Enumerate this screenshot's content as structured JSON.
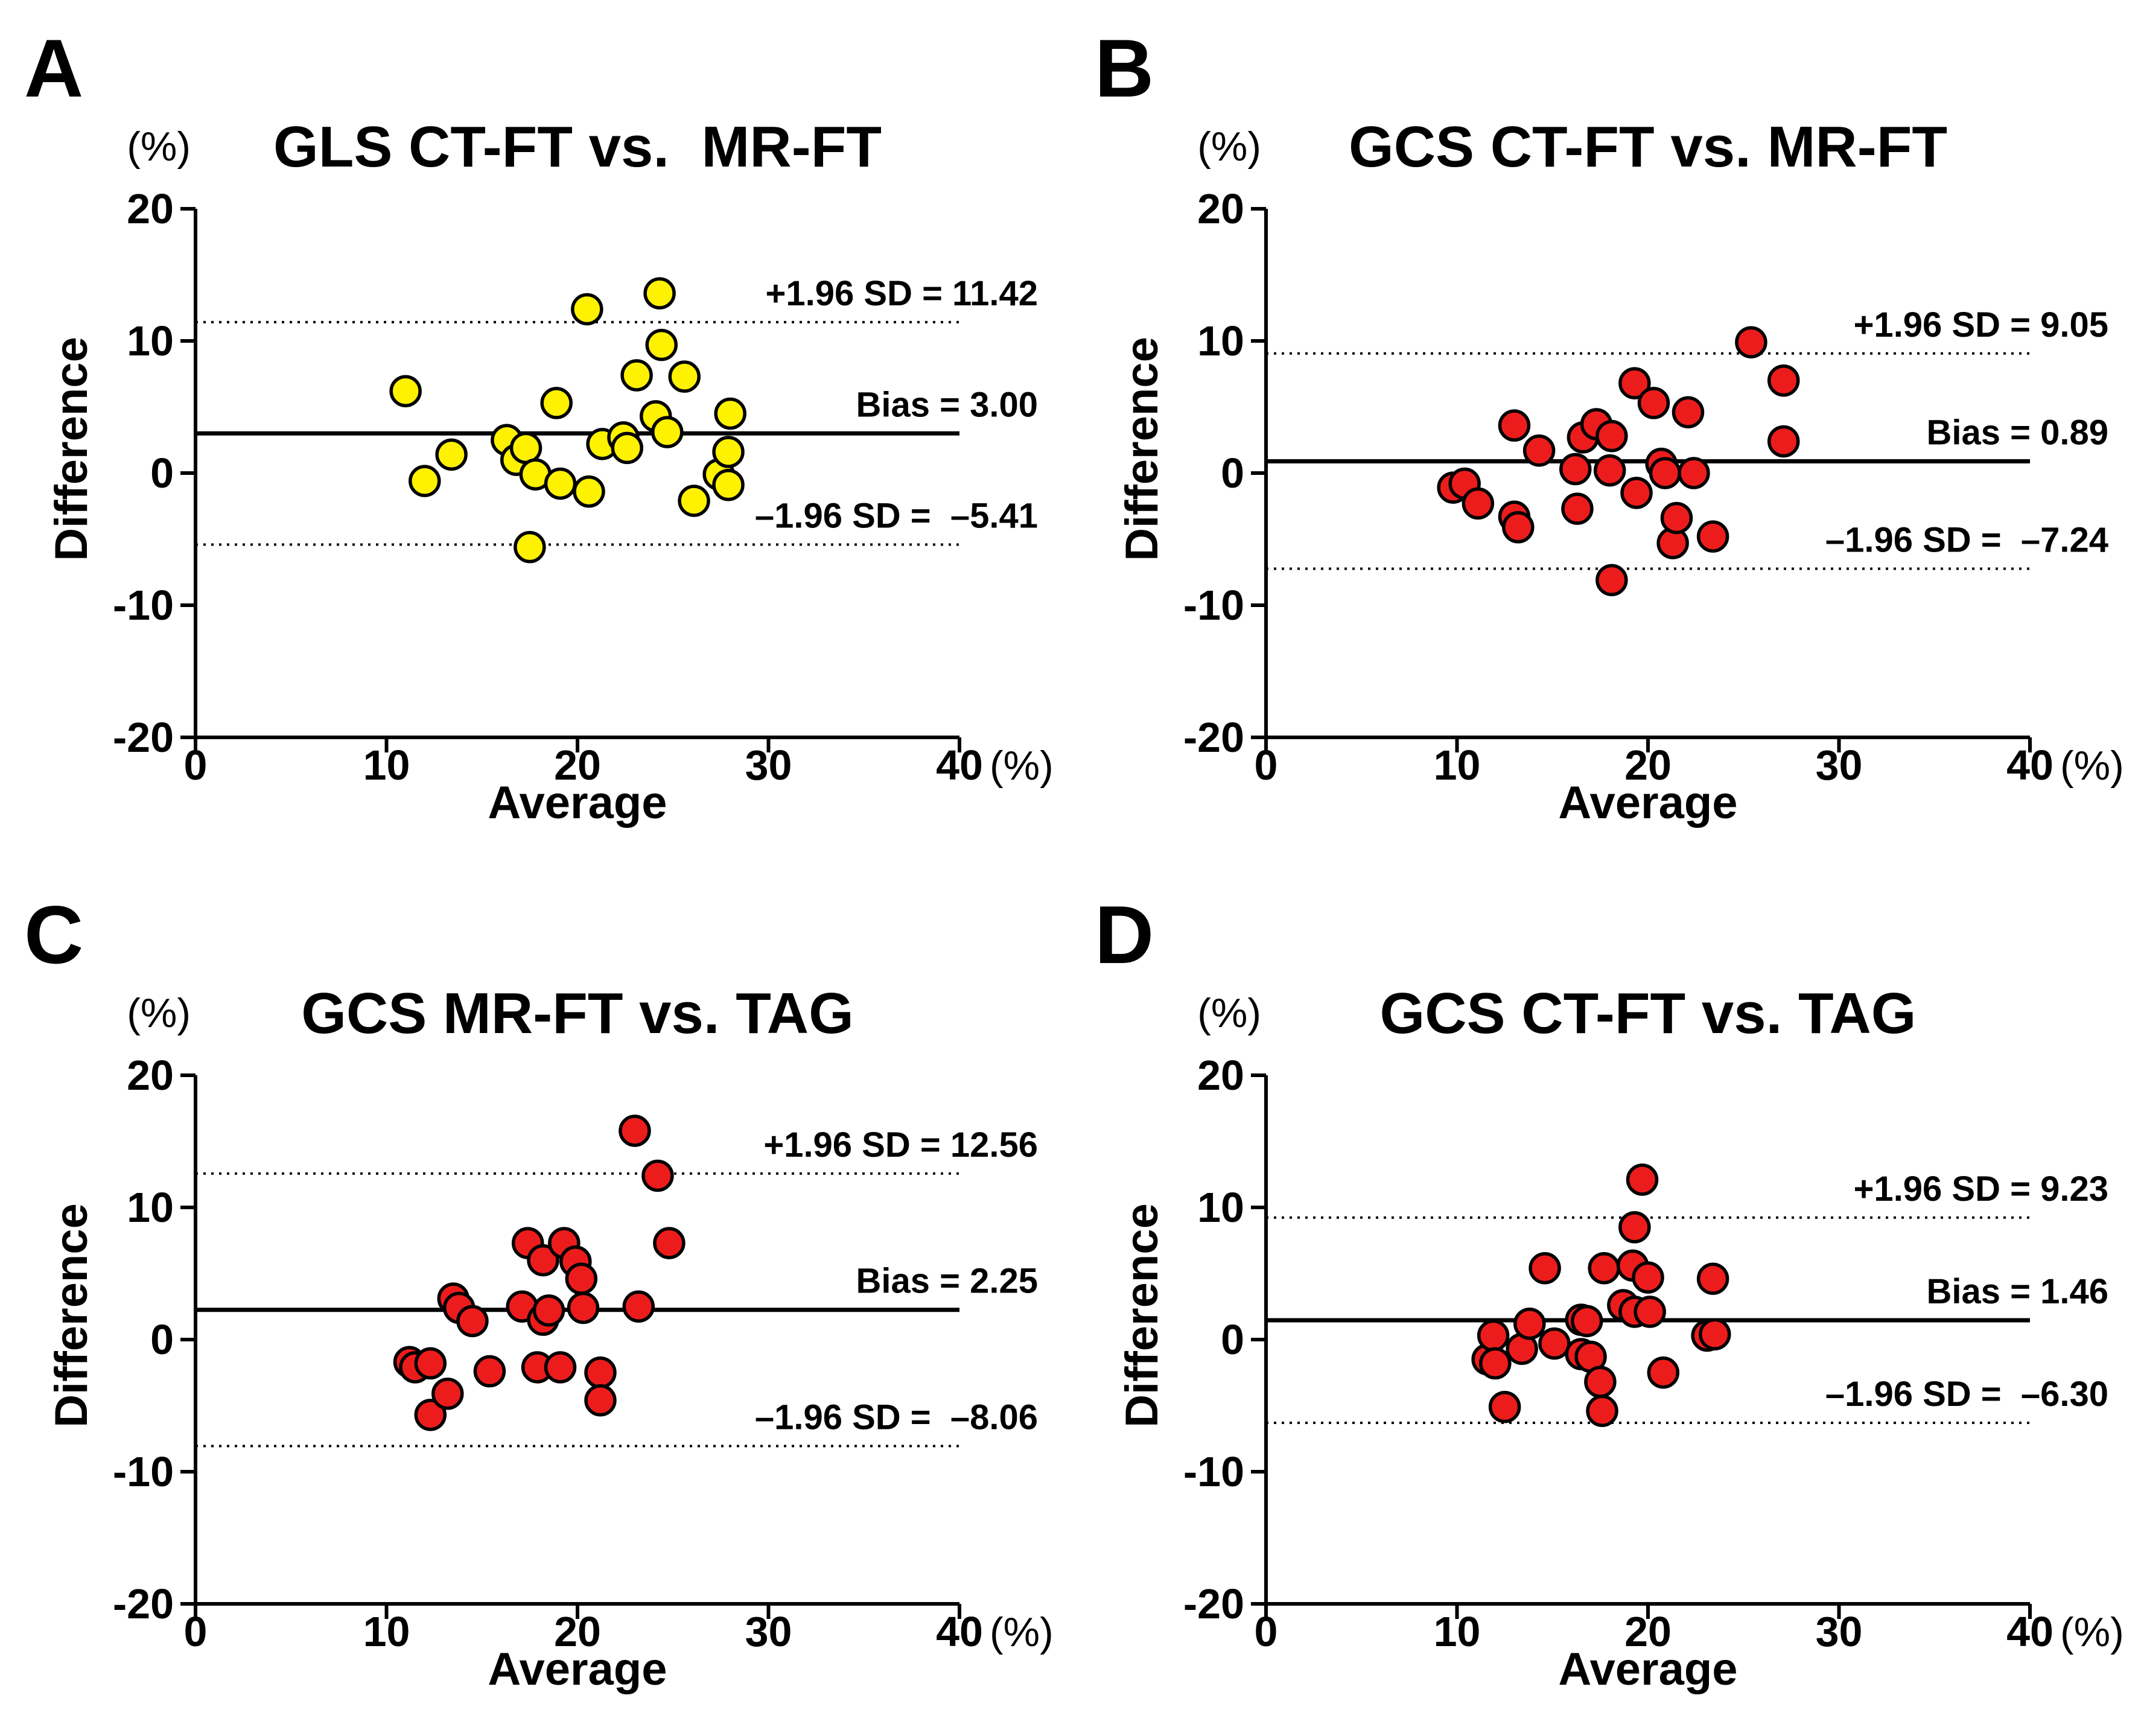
{
  "page": {
    "background": "#ffffff"
  },
  "chart_data": [
    {
      "type": "scatter",
      "panel_letter": "A",
      "title": "GLS CT-FT vs.  MR-FT",
      "xlabel": "Average",
      "ylabel": "Difference",
      "x_axis_unit": "(%)",
      "y_axis_unit": "(%)",
      "xlim": [
        0,
        40
      ],
      "ylim": [
        -20,
        20
      ],
      "x_ticks": [
        0,
        10,
        20,
        30,
        40
      ],
      "y_ticks": [
        20,
        10,
        0,
        -10,
        -20
      ],
      "grid": false,
      "legend": "none",
      "marker_fill": "#FFF200",
      "marker_stroke": "#000000",
      "bias": 3.0,
      "bias_label": "Bias = 3.00",
      "upper_loa": 11.42,
      "upper_loa_label": "+1.96 SD = 11.42",
      "lower_loa": -5.41,
      "lower_loa_label": "–1.96 SD =  –5.41",
      "points": [
        [
          11.0,
          6.2
        ],
        [
          12.0,
          -0.6
        ],
        [
          13.4,
          1.4
        ],
        [
          16.3,
          2.5
        ],
        [
          16.8,
          1.0
        ],
        [
          17.3,
          1.9
        ],
        [
          17.8,
          -0.1
        ],
        [
          17.5,
          -5.6
        ],
        [
          18.9,
          5.3
        ],
        [
          19.1,
          -0.8
        ],
        [
          20.5,
          12.4
        ],
        [
          20.6,
          -1.4
        ],
        [
          21.3,
          2.2
        ],
        [
          22.4,
          2.7
        ],
        [
          22.6,
          1.9
        ],
        [
          23.1,
          7.4
        ],
        [
          24.1,
          4.3
        ],
        [
          24.3,
          13.6
        ],
        [
          24.4,
          9.7
        ],
        [
          24.7,
          3.1
        ],
        [
          25.6,
          7.3
        ],
        [
          26.1,
          -2.1
        ],
        [
          27.4,
          -0.1
        ],
        [
          27.9,
          -0.9
        ],
        [
          27.9,
          1.6
        ],
        [
          28.0,
          4.5
        ]
      ]
    },
    {
      "type": "scatter",
      "panel_letter": "B",
      "title": "GCS CT-FT vs. MR-FT",
      "xlabel": "Average",
      "ylabel": "Difference",
      "x_axis_unit": "(%)",
      "y_axis_unit": "(%)",
      "xlim": [
        0,
        40
      ],
      "ylim": [
        -20,
        20
      ],
      "x_ticks": [
        0,
        10,
        20,
        30,
        40
      ],
      "y_ticks": [
        20,
        10,
        0,
        -10,
        -20
      ],
      "grid": false,
      "legend": "none",
      "marker_fill": "#ED1C1C",
      "marker_stroke": "#000000",
      "bias": 0.89,
      "bias_label": "Bias = 0.89",
      "upper_loa": 9.05,
      "upper_loa_label": "+1.96 SD = 9.05",
      "lower_loa": -7.24,
      "lower_loa_label": "–1.96 SD =  –7.24",
      "points": [
        [
          9.8,
          -1.1
        ],
        [
          10.4,
          -0.8
        ],
        [
          11.1,
          -2.3
        ],
        [
          13.0,
          3.6
        ],
        [
          13.0,
          -3.3
        ],
        [
          13.2,
          -4.1
        ],
        [
          14.3,
          1.7
        ],
        [
          16.2,
          0.3
        ],
        [
          16.3,
          -2.7
        ],
        [
          16.6,
          2.7
        ],
        [
          17.3,
          3.7
        ],
        [
          18.0,
          0.2
        ],
        [
          18.1,
          2.8
        ],
        [
          18.1,
          -8.1
        ],
        [
          19.3,
          6.8
        ],
        [
          19.4,
          -1.5
        ],
        [
          20.3,
          5.3
        ],
        [
          20.7,
          0.7
        ],
        [
          20.9,
          0.0
        ],
        [
          21.3,
          -5.3
        ],
        [
          21.5,
          -3.4
        ],
        [
          22.1,
          4.6
        ],
        [
          22.4,
          0.0
        ],
        [
          23.4,
          -4.8
        ],
        [
          25.4,
          9.9
        ],
        [
          27.1,
          7.0
        ],
        [
          27.1,
          2.4
        ]
      ]
    },
    {
      "type": "scatter",
      "panel_letter": "C",
      "title": "GCS MR-FT vs. TAG",
      "xlabel": "Average",
      "ylabel": "Difference",
      "x_axis_unit": "(%)",
      "y_axis_unit": "(%)",
      "xlim": [
        0,
        40
      ],
      "ylim": [
        -20,
        20
      ],
      "x_ticks": [
        0,
        10,
        20,
        30,
        40
      ],
      "y_ticks": [
        20,
        10,
        0,
        -10,
        -20
      ],
      "grid": false,
      "legend": "none",
      "marker_fill": "#ED1C1C",
      "marker_stroke": "#000000",
      "bias": 2.25,
      "bias_label": "Bias = 2.25",
      "upper_loa": 12.56,
      "upper_loa_label": "+1.96 SD = 12.56",
      "lower_loa": -8.06,
      "lower_loa_label": "–1.96 SD =  –8.06",
      "points": [
        [
          11.2,
          -1.7
        ],
        [
          11.5,
          -2.1
        ],
        [
          12.3,
          -1.8
        ],
        [
          12.3,
          -5.7
        ],
        [
          13.2,
          -4.1
        ],
        [
          13.5,
          3.1
        ],
        [
          13.8,
          2.4
        ],
        [
          14.5,
          1.4
        ],
        [
          15.4,
          -2.4
        ],
        [
          17.1,
          2.5
        ],
        [
          17.4,
          7.3
        ],
        [
          17.9,
          -2.1
        ],
        [
          18.2,
          6.0
        ],
        [
          18.2,
          1.5
        ],
        [
          18.5,
          2.2
        ],
        [
          19.1,
          -2.1
        ],
        [
          19.3,
          7.3
        ],
        [
          19.9,
          5.9
        ],
        [
          20.2,
          4.6
        ],
        [
          20.3,
          2.4
        ],
        [
          21.2,
          -2.5
        ],
        [
          21.2,
          -4.6
        ],
        [
          23.0,
          15.8
        ],
        [
          23.2,
          2.5
        ],
        [
          24.2,
          12.4
        ],
        [
          24.8,
          7.3
        ]
      ]
    },
    {
      "type": "scatter",
      "panel_letter": "D",
      "title": "GCS CT-FT vs. TAG",
      "xlabel": "Average",
      "ylabel": "Difference",
      "x_axis_unit": "(%)",
      "y_axis_unit": "(%)",
      "xlim": [
        0,
        40
      ],
      "ylim": [
        -20,
        20
      ],
      "x_ticks": [
        0,
        10,
        20,
        30,
        40
      ],
      "y_ticks": [
        20,
        10,
        0,
        -10,
        -20
      ],
      "grid": false,
      "legend": "none",
      "marker_fill": "#ED1C1C",
      "marker_stroke": "#000000",
      "bias": 1.46,
      "bias_label": "Bias = 1.46",
      "upper_loa": 9.23,
      "upper_loa_label": "+1.96 SD = 9.23",
      "lower_loa": -6.3,
      "lower_loa_label": "–1.96 SD =  –6.30",
      "points": [
        [
          11.6,
          -1.5
        ],
        [
          11.9,
          0.3
        ],
        [
          12.0,
          -1.8
        ],
        [
          12.5,
          -5.1
        ],
        [
          13.4,
          -0.7
        ],
        [
          13.8,
          1.2
        ],
        [
          14.6,
          5.4
        ],
        [
          15.1,
          -0.3
        ],
        [
          16.5,
          1.5
        ],
        [
          16.8,
          1.4
        ],
        [
          16.5,
          -1.1
        ],
        [
          17.0,
          -1.3
        ],
        [
          17.5,
          -3.2
        ],
        [
          17.6,
          -5.4
        ],
        [
          17.7,
          5.4
        ],
        [
          18.7,
          2.6
        ],
        [
          19.2,
          5.6
        ],
        [
          19.3,
          2.1
        ],
        [
          19.3,
          8.5
        ],
        [
          19.7,
          12.1
        ],
        [
          20.0,
          4.7
        ],
        [
          20.1,
          2.1
        ],
        [
          20.8,
          -2.5
        ],
        [
          23.1,
          0.3
        ],
        [
          23.5,
          0.4
        ],
        [
          23.4,
          4.6
        ]
      ]
    }
  ]
}
